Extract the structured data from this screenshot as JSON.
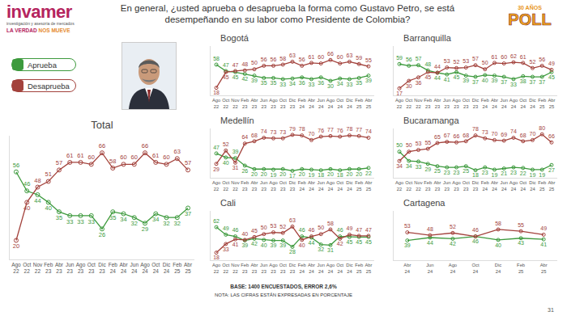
{
  "header": {
    "title": "En general, ¿usted aprueba o desaprueba la forma como Gustavo Petro, se está desempeñando en su labor como Presidente de Colombia?",
    "logo": "invamer",
    "logo_subtitle": "investigación y asesoría de mercados",
    "tagline_1": "LA VERDAD ",
    "tagline_2": "NOS MUEVE",
    "badge_top": "30 AÑOS",
    "badge": "POLL"
  },
  "footer": {
    "base": "BASE: 1400 ENCUESTADOS, ERROR 2,6%",
    "note": "NOTA: LAS CIFRAS ESTÁN EXPRESADAS EN PORCENTAJE"
  },
  "page_number": "31",
  "chart_data": [
    {
      "type": "line",
      "title": "Total",
      "legend": "upper left",
      "data_labels": true,
      "tick_labels": "x",
      "grid": false,
      "categories": [
        "Ago 22",
        "Oct 22",
        "Nov 22",
        "Feb 23",
        "Abr 23",
        "Jun 23",
        "Ago 23",
        "Oct 23",
        "Dic 23",
        "Feb 24",
        "Abr 24",
        "Jun 24",
        "Ago 24",
        "Oct 24",
        "Dic 24",
        "Feb 25",
        "Abr 25"
      ],
      "ylim": [
        10,
        75
      ],
      "yticks": [],
      "series": [
        {
          "name": "Aprueba",
          "color": "#3d9a3d",
          "marker": "circle-open",
          "line_style": "solid",
          "values": [
            56,
            46,
            44,
            40,
            35,
            33,
            33,
            33,
            26,
            35,
            34,
            32,
            29,
            34,
            32,
            32,
            37
          ]
        },
        {
          "name": "Desaprueba",
          "color": "#a3423c",
          "marker": "circle-open",
          "line_style": "solid",
          "values": [
            20,
            40,
            48,
            51,
            57,
            61,
            61,
            60,
            66,
            58,
            60,
            60,
            66,
            61,
            60,
            63,
            57
          ]
        }
      ]
    },
    {
      "type": "line",
      "title": "Bogotá",
      "data_labels": true,
      "tick_labels": "x",
      "grid": false,
      "categories": [
        "Ago 22",
        "Oct 22",
        "Nov 22",
        "Feb 23",
        "Abr 23",
        "Jun 23",
        "Ago 23",
        "Oct 23",
        "Dic 23",
        "Feb 24",
        "Abr 24",
        "Jun 24",
        "Ago 24",
        "Oct 24",
        "Dic 24",
        "Feb 25",
        "Abr 25"
      ],
      "ylim": [
        5,
        90
      ],
      "yticks": [],
      "series": [
        {
          "name": "Aprueba",
          "color": "#3d9a3d",
          "marker": "circle-open",
          "line_style": "solid",
          "values": [
            58,
            47,
            45,
            42,
            39,
            35,
            35,
            33,
            34,
            36,
            33,
            36,
            30,
            34,
            33,
            35,
            39
          ]
        },
        {
          "name": "Desaprueba",
          "color": "#a3423c",
          "marker": "circle-open",
          "line_style": "solid",
          "values": [
            18,
            45,
            47,
            48,
            50,
            56,
            56,
            58,
            63,
            56,
            61,
            60,
            66,
            60,
            63,
            59,
            55
          ]
        }
      ]
    },
    {
      "type": "line",
      "title": "Barranquilla",
      "data_labels": true,
      "tick_labels": "x",
      "grid": false,
      "categories": [
        "Ago 22",
        "Oct 22",
        "Nov 22",
        "Feb 23",
        "Abr 23",
        "Jun 23",
        "Ago 23",
        "Oct 23",
        "Dic 23",
        "Feb 24",
        "Abr 24",
        "Jun 24",
        "Ago 24",
        "Oct 24",
        "Dic 24",
        "Feb 25",
        "Abr 25"
      ],
      "ylim": [
        5,
        90
      ],
      "yticks": [],
      "series": [
        {
          "name": "Aprueba",
          "color": "#3d9a3d",
          "marker": "circle-open",
          "line_style": "solid",
          "values": [
            59,
            56,
            57,
            48,
            44,
            41,
            45,
            39,
            37,
            40,
            39,
            37,
            33,
            38,
            37,
            37,
            45
          ]
        },
        {
          "name": "Desaprueba",
          "color": "#a3423c",
          "marker": "circle-open",
          "line_style": "solid",
          "values": [
            17,
            30,
            36,
            45,
            44,
            53,
            52,
            53,
            57,
            50,
            61,
            60,
            62,
            61,
            52,
            56,
            49
          ]
        }
      ]
    },
    {
      "type": "line",
      "title": "Medellín",
      "data_labels": true,
      "tick_labels": "x",
      "grid": false,
      "categories": [
        "Ago 22",
        "Oct 22",
        "Nov 22",
        "Feb 23",
        "Abr 23",
        "Jun 23",
        "Ago 23",
        "Oct 23",
        "Dic 23",
        "Feb 24",
        "Abr 24",
        "Jun 24",
        "Ago 24",
        "Oct 24",
        "Dic 24",
        "Feb 25",
        "Abr 25"
      ],
      "ylim": [
        5,
        90
      ],
      "yticks": [],
      "series": [
        {
          "name": "Aprueba",
          "color": "#3d9a3d",
          "marker": "circle-open",
          "line_style": "solid",
          "values": [
            47,
            40,
            39,
            26,
            20,
            20,
            19,
            20,
            17,
            20,
            19,
            18,
            20,
            18,
            20,
            20,
            22
          ]
        },
        {
          "name": "Desaprueba",
          "color": "#a3423c",
          "marker": "circle-open",
          "line_style": "solid",
          "values": [
            29,
            52,
            31,
            64,
            68,
            74,
            73,
            73,
            79,
            78,
            70,
            76,
            77,
            76,
            78,
            77,
            74
          ]
        }
      ]
    },
    {
      "type": "line",
      "title": "Bucaramanga",
      "data_labels": true,
      "tick_labels": "x",
      "grid": false,
      "categories": [
        "Ago 22",
        "Oct 22",
        "Nov 22",
        "Feb 23",
        "Abr 23",
        "Jun 23",
        "Ago 23",
        "Oct 23",
        "Dic 23",
        "Feb 24",
        "Abr 24",
        "Jun 24",
        "Ago 24",
        "Oct 24",
        "Dic 24",
        "Feb 25",
        "Abr 25"
      ],
      "ylim": [
        5,
        90
      ],
      "yticks": [],
      "series": [
        {
          "name": "Aprueba",
          "color": "#3d9a3d",
          "marker": "circle-open",
          "line_style": "solid",
          "values": [
            50,
            34,
            33,
            29,
            25,
            23,
            23,
            25,
            18,
            23,
            19,
            21,
            23,
            22,
            19,
            19,
            27
          ]
        },
        {
          "name": "Desaprueba",
          "color": "#a3423c",
          "marker": "circle-open",
          "line_style": "solid",
          "values": [
            34,
            50,
            53,
            55,
            65,
            67,
            66,
            68,
            78,
            73,
            70,
            69,
            74,
            68,
            70,
            80,
            66
          ]
        }
      ]
    },
    {
      "type": "line",
      "title": "Cali",
      "data_labels": true,
      "tick_labels": "x",
      "grid": false,
      "categories": [
        "Ago 22",
        "Oct 22",
        "Nov 22",
        "Feb 23",
        "Abr 23",
        "Jun 23",
        "Ago 23",
        "Oct 23",
        "Dic 23",
        "Feb 24",
        "Abr 24",
        "Jun 24",
        "Ago 24",
        "Oct 24",
        "Dic 24",
        "Feb 25",
        "Abr 25"
      ],
      "ylim": [
        5,
        90
      ],
      "yticks": [],
      "series": [
        {
          "name": "Aprueba",
          "color": "#3d9a3d",
          "marker": "circle-open",
          "line_style": "solid",
          "values": [
            62,
            49,
            46,
            39,
            42,
            40,
            39,
            39,
            28,
            46,
            44,
            32,
            31,
            46,
            45,
            45,
            45
          ]
        },
        {
          "name": "Desaprueba",
          "color": "#a3423c",
          "marker": "circle-open",
          "line_style": "solid",
          "values": [
            18,
            33,
            41,
            40,
            45,
            50,
            53,
            52,
            63,
            40,
            46,
            50,
            58,
            42,
            49,
            47,
            47
          ]
        }
      ]
    },
    {
      "type": "line",
      "title": "Cartagena",
      "data_labels": true,
      "tick_labels": "x",
      "grid": false,
      "categories": [
        "Abr 24",
        "Jun 24",
        "Ago 24",
        "Oct 24",
        "Dic 24",
        "Feb 25",
        "Abr 25"
      ],
      "ylim": [
        5,
        90
      ],
      "yticks": [],
      "series": [
        {
          "name": "Aprueba",
          "color": "#3d9a3d",
          "marker": "circle-open",
          "line_style": "solid",
          "values": [
            39,
            44,
            42,
            46,
            40,
            43,
            41
          ]
        },
        {
          "name": "Desaprueba",
          "color": "#a3423c",
          "marker": "circle-open",
          "line_style": "solid",
          "values": [
            53,
            48,
            52,
            46,
            58,
            55,
            49
          ]
        }
      ]
    }
  ]
}
